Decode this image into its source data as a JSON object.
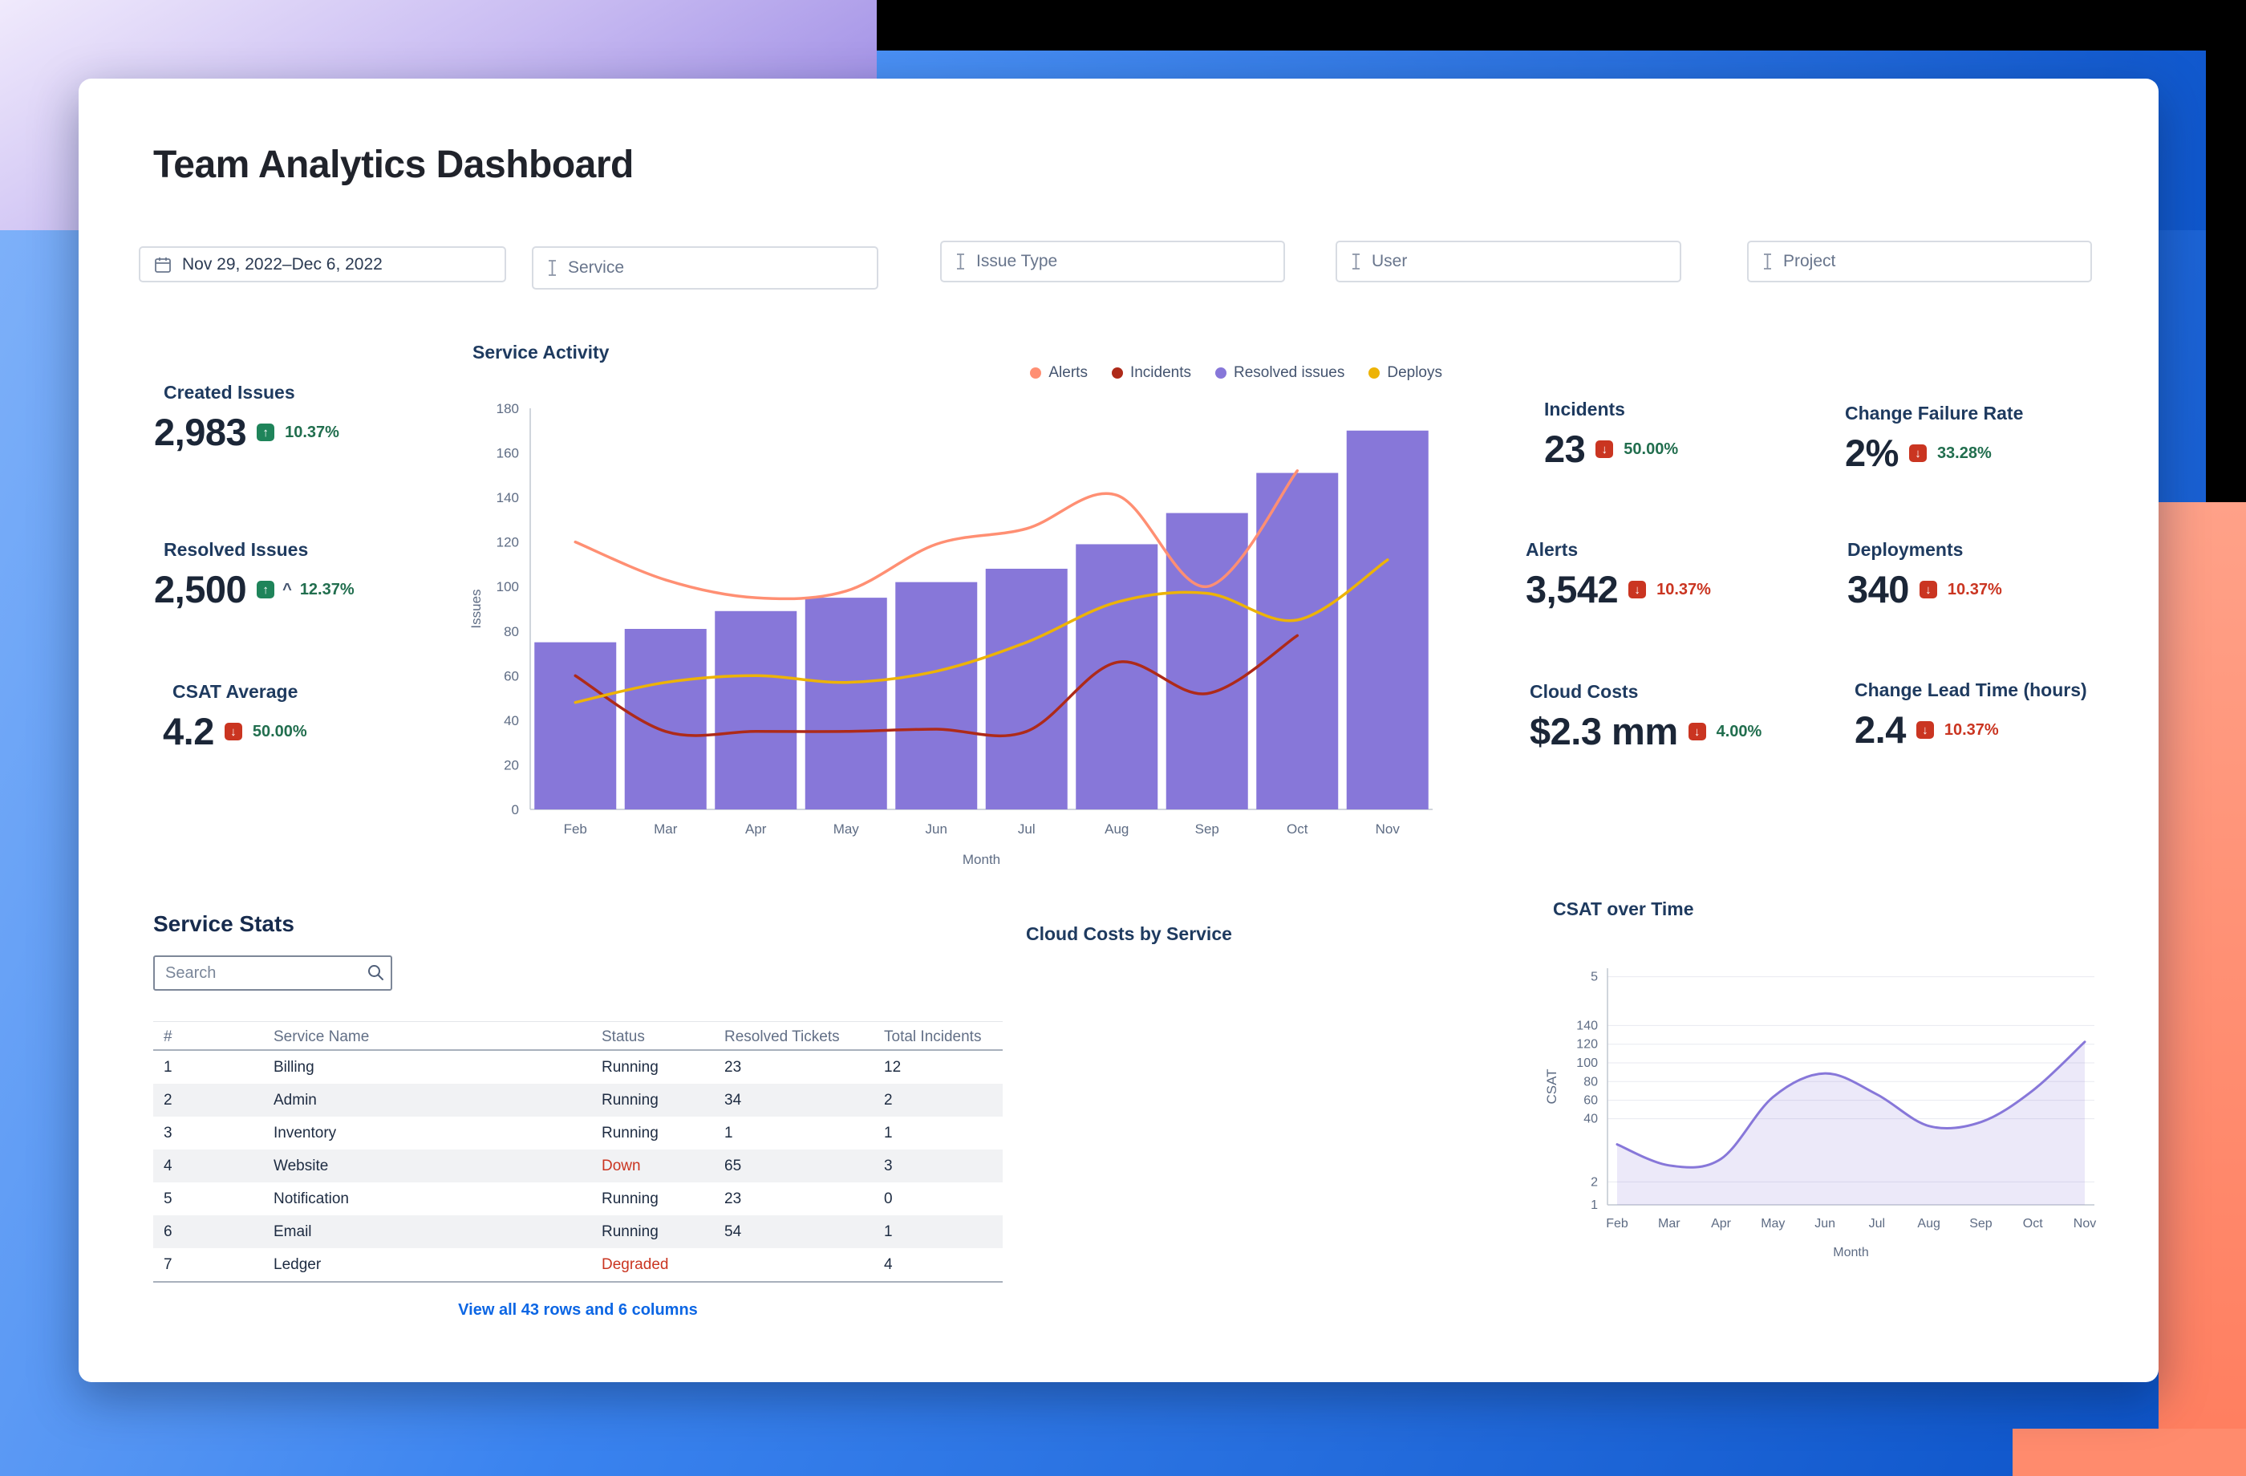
{
  "header": {
    "title": "Team Analytics Dashboard"
  },
  "filters": [
    {
      "id": "date-range",
      "icon": "calendar-icon",
      "value": "Nov 29, 2022–Dec 6, 2022"
    },
    {
      "id": "service",
      "icon": "text-cursor-icon",
      "placeholder": "Service"
    },
    {
      "id": "issue-type",
      "icon": "text-cursor-icon",
      "placeholder": "Issue Type"
    },
    {
      "id": "user",
      "icon": "text-cursor-icon",
      "placeholder": "User"
    },
    {
      "id": "project",
      "icon": "text-cursor-icon",
      "placeholder": "Project"
    }
  ],
  "kpis_left": [
    {
      "label": "Created Issues",
      "value": "2,983",
      "delta": "10.37%",
      "trend": "up",
      "icon_color": "#1F845A",
      "delta_color": "#216E4E"
    },
    {
      "label": "Resolved Issues",
      "value": "2,500",
      "delta": "12.37%",
      "caret": "^",
      "trend": "up",
      "icon_color": "#1F845A",
      "delta_color": "#216E4E"
    },
    {
      "label": "CSAT Average",
      "value": "4.2",
      "delta": "50.00%",
      "trend": "down",
      "icon_color": "#CA3521",
      "delta_color": "#216E4E"
    }
  ],
  "kpis_right": [
    {
      "label": "Incidents",
      "value": "23",
      "delta": "50.00%",
      "trend": "down",
      "icon_color": "#CA3521",
      "delta_color": "#216E4E"
    },
    {
      "label": "Change Failure Rate",
      "value": "2%",
      "delta": "33.28%",
      "trend": "down",
      "icon_color": "#CA3521",
      "delta_color": "#216E4E"
    },
    {
      "label": "Alerts",
      "value": "3,542",
      "delta": "10.37%",
      "trend": "down",
      "icon_color": "#CA3521",
      "delta_color": "#CA3521"
    },
    {
      "label": "Deployments",
      "value": "340",
      "delta": "10.37%",
      "trend": "down",
      "icon_color": "#CA3521",
      "delta_color": "#CA3521"
    },
    {
      "label": "Cloud Costs",
      "value": "$2.3 mm",
      "delta": "4.00%",
      "trend": "down",
      "icon_color": "#CA3521",
      "delta_color": "#216E4E"
    },
    {
      "label": "Change Lead Time (hours)",
      "value": "2.4",
      "delta": "10.37%",
      "trend": "down",
      "icon_color": "#CA3521",
      "delta_color": "#CA3521"
    }
  ],
  "chart_data": [
    {
      "id": "service-activity",
      "type": "bar",
      "title": "Service Activity",
      "categories": [
        "Feb",
        "Mar",
        "Apr",
        "May",
        "Jun",
        "Jul",
        "Aug",
        "Sep",
        "Oct",
        "Nov"
      ],
      "xlabel": "Month",
      "ylabel": "Issues",
      "ylim": [
        0,
        180
      ],
      "ytick_step": 20,
      "legend_position": "top-right",
      "series": [
        {
          "name": "Alerts",
          "type": "line",
          "color": "#FF8F73",
          "values": [
            120,
            103,
            95,
            98,
            119,
            126,
            141,
            100,
            152,
            null
          ]
        },
        {
          "name": "Incidents",
          "type": "line",
          "color": "#AE2A19",
          "values": [
            60,
            35,
            35,
            35,
            36,
            35,
            66,
            52,
            78,
            null
          ]
        },
        {
          "name": "Resolved issues",
          "type": "bar",
          "color": "#8777D9",
          "values": [
            75,
            81,
            89,
            95,
            102,
            108,
            119,
            133,
            151,
            170
          ]
        },
        {
          "name": "Deploys",
          "type": "line",
          "color": "#EDB306",
          "values": [
            48,
            57,
            60,
            57,
            62,
            75,
            93,
            97,
            85,
            112
          ]
        }
      ]
    },
    {
      "id": "csat-over-time",
      "type": "area",
      "title": "CSAT over Time",
      "categories": [
        "Feb",
        "Mar",
        "Apr",
        "May",
        "Jun",
        "Jul",
        "Aug",
        "Sep",
        "Oct",
        "Nov"
      ],
      "xlabel": "Month",
      "ylabel": "CSAT",
      "ylim": [
        0,
        180
      ],
      "ytick_labels": [
        "5",
        "140",
        "120",
        "100",
        "80",
        "60",
        "40",
        "2",
        "1"
      ],
      "series": [
        {
          "name": "CSAT",
          "color": "#8777D9",
          "values": [
            46,
            30,
            35,
            82,
            100,
            84,
            60,
            63,
            87,
            124
          ]
        }
      ]
    }
  ],
  "cloud_costs_section": {
    "title": "Cloud Costs by Service"
  },
  "service_stats": {
    "title": "Service Stats",
    "search_placeholder": "Search",
    "columns": [
      "#",
      "Service Name",
      "Status",
      "Resolved Tickets",
      "Total Incidents"
    ],
    "rows": [
      [
        "1",
        "Billing",
        "Running",
        "23",
        "12"
      ],
      [
        "2",
        "Admin",
        "Running",
        "34",
        "2"
      ],
      [
        "3",
        "Inventory",
        "Running",
        "1",
        "1"
      ],
      [
        "4",
        "Website",
        "Down",
        "65",
        "3"
      ],
      [
        "5",
        "Notification",
        "Running",
        "23",
        "0"
      ],
      [
        "6",
        "Email",
        "Running",
        "54",
        "1"
      ],
      [
        "7",
        "Ledger",
        "Degraded",
        "",
        "4"
      ]
    ],
    "status_colors": {
      "Running": "#1D2B41",
      "Down": "#CA3521",
      "Degraded": "#CA3521"
    },
    "footer_link": "View all 43 rows and 6 columns"
  }
}
